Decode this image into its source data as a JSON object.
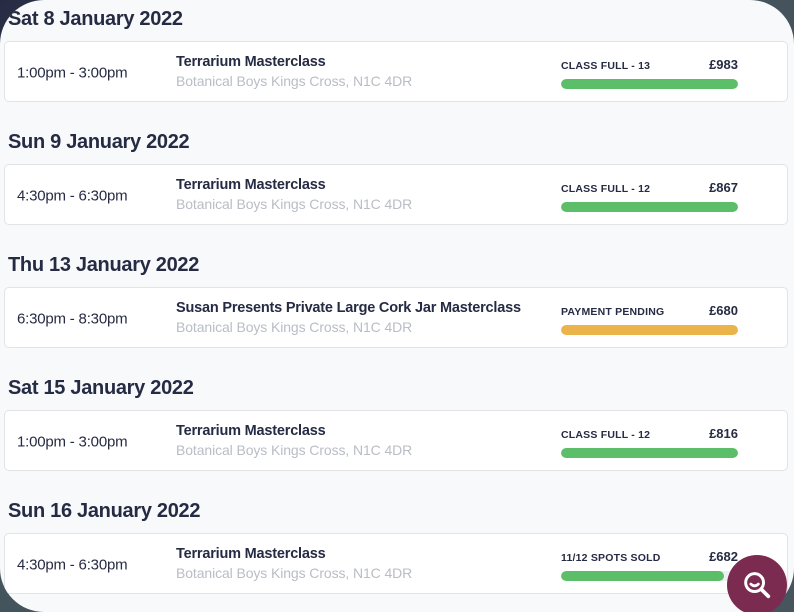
{
  "colors": {
    "green": "#5cbe69",
    "amber": "#eab44b",
    "accent_maroon": "#7b2b50",
    "text_dark": "#252b43"
  },
  "search_button": {
    "icon": "magnifier-icon"
  },
  "sections": [
    {
      "date": "Sat 8 January 2022",
      "events": [
        {
          "time": "1:00pm - 3:00pm",
          "title": "Terrarium Masterclass",
          "location": "Botanical Boys Kings Cross, N1C 4DR",
          "status": "CLASS FULL - 13",
          "price": "£983",
          "progress_percent": 100,
          "status_color": "green"
        }
      ]
    },
    {
      "date": "Sun 9 January 2022",
      "events": [
        {
          "time": "4:30pm - 6:30pm",
          "title": "Terrarium Masterclass",
          "location": "Botanical Boys Kings Cross, N1C 4DR",
          "status": "CLASS FULL - 12",
          "price": "£867",
          "progress_percent": 100,
          "status_color": "green"
        }
      ]
    },
    {
      "date": "Thu 13 January 2022",
      "events": [
        {
          "time": "6:30pm - 8:30pm",
          "title": "Susan Presents Private Large Cork Jar Masterclass",
          "location": "Botanical Boys Kings Cross, N1C 4DR",
          "status": "PAYMENT PENDING",
          "price": "£680",
          "progress_percent": 100,
          "status_color": "amber"
        }
      ]
    },
    {
      "date": "Sat 15 January 2022",
      "events": [
        {
          "time": "1:00pm - 3:00pm",
          "title": "Terrarium Masterclass",
          "location": "Botanical Boys Kings Cross, N1C 4DR",
          "status": "CLASS FULL - 12",
          "price": "£816",
          "progress_percent": 100,
          "status_color": "green"
        }
      ]
    },
    {
      "date": "Sun 16 January 2022",
      "events": [
        {
          "time": "4:30pm - 6:30pm",
          "title": "Terrarium Masterclass",
          "location": "Botanical Boys Kings Cross, N1C 4DR",
          "status": "11/12 SPOTS SOLD",
          "price": "£682",
          "progress_percent": 92,
          "status_color": "green"
        }
      ]
    }
  ]
}
